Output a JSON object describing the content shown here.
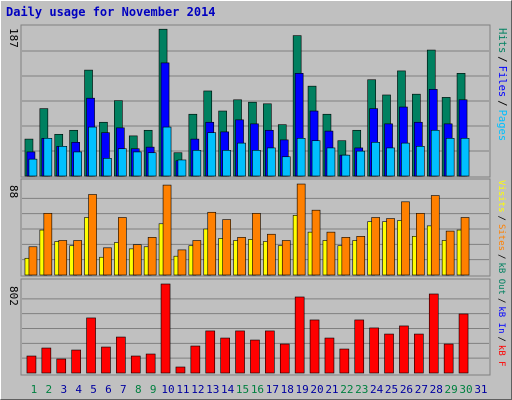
{
  "title": "Daily usage for November 2014",
  "legend_separator": "/",
  "chart_data": [
    {
      "type": "bar",
      "ylim": [
        0,
        187
      ],
      "yticks": [
        187
      ],
      "series": [
        {
          "name": "Hits",
          "color": "#008060",
          "values": [
            46,
            84,
            52,
            57,
            132,
            67,
            94,
            50,
            57,
            183,
            29,
            77,
            106,
            81,
            95,
            92,
            90,
            64,
            175,
            112,
            77,
            44,
            57,
            120,
            101,
            131,
            102,
            157,
            98,
            128,
            null
          ]
        },
        {
          "name": "Files",
          "color": "#0000ff",
          "values": [
            30,
            47,
            37,
            42,
            97,
            54,
            60,
            34,
            36,
            141,
            19,
            46,
            67,
            55,
            70,
            65,
            57,
            45,
            128,
            81,
            56,
            26,
            35,
            84,
            65,
            86,
            67,
            108,
            65,
            95,
            null
          ]
        },
        {
          "name": "Pages",
          "color": "#00c0ff",
          "values": [
            21,
            47,
            37,
            30,
            61,
            22,
            34,
            30,
            29,
            61,
            20,
            32,
            54,
            32,
            41,
            32,
            35,
            24,
            47,
            44,
            35,
            26,
            31,
            42,
            35,
            41,
            37,
            57,
            47,
            47,
            null
          ]
        }
      ]
    },
    {
      "type": "bar",
      "ylim": [
        0,
        88
      ],
      "yticks": [
        88
      ],
      "series": [
        {
          "name": "Visits",
          "color": "#ffff00",
          "values": [
            16,
            43,
            32,
            28,
            55,
            17,
            31,
            25,
            27,
            49,
            18,
            28,
            44,
            35,
            33,
            34,
            32,
            28,
            57,
            41,
            33,
            28,
            33,
            51,
            51,
            52,
            37,
            47,
            33,
            43,
            null
          ]
        },
        {
          "name": "Sites",
          "color": "#ff8000",
          "values": [
            27,
            59,
            33,
            33,
            77,
            26,
            55,
            29,
            36,
            86,
            24,
            33,
            60,
            53,
            36,
            59,
            39,
            33,
            87,
            62,
            41,
            36,
            37,
            55,
            54,
            70,
            59,
            76,
            42,
            55,
            null
          ]
        }
      ]
    },
    {
      "type": "bar",
      "ylim": [
        0,
        802
      ],
      "yticks": [
        802
      ],
      "categories": [
        "1",
        "2",
        "3",
        "4",
        "5",
        "6",
        "7",
        "8",
        "9",
        "10",
        "11",
        "12",
        "13",
        "14",
        "15",
        "16",
        "17",
        "18",
        "19",
        "20",
        "21",
        "22",
        "23",
        "24",
        "25",
        "26",
        "27",
        "28",
        "29",
        "30",
        "31"
      ],
      "category_colors": [
        "#008040",
        "#008040",
        "#0000a0",
        "#0000a0",
        "#0000a0",
        "#0000a0",
        "#0000a0",
        "#008040",
        "#008040",
        "#0000a0",
        "#0000a0",
        "#0000a0",
        "#0000a0",
        "#0000a0",
        "#008040",
        "#008040",
        "#0000a0",
        "#0000a0",
        "#0000a0",
        "#0000a0",
        "#0000a0",
        "#008040",
        "#008040",
        "#0000a0",
        "#0000a0",
        "#0000a0",
        "#0000a0",
        "#0000a0",
        "#008040",
        "#008040",
        "#0000a0"
      ],
      "series": [
        {
          "name": "kB Out",
          "color": "#008060",
          "values": [
            0,
            0,
            0,
            0,
            0,
            0,
            0,
            0,
            0,
            0,
            0,
            0,
            0,
            0,
            0,
            0,
            0,
            0,
            0,
            0,
            0,
            0,
            0,
            0,
            0,
            0,
            0,
            0,
            0,
            0,
            null
          ]
        },
        {
          "name": "kB In",
          "color": "#0000ff",
          "values": [
            0,
            0,
            0,
            0,
            0,
            0,
            0,
            0,
            0,
            0,
            0,
            0,
            0,
            0,
            0,
            0,
            0,
            0,
            0,
            0,
            0,
            0,
            0,
            0,
            0,
            0,
            0,
            0,
            0,
            0,
            null
          ]
        },
        {
          "name": "kB F",
          "color": "#ff0000",
          "values": [
            153,
            225,
            126,
            207,
            496,
            234,
            324,
            153,
            171,
            802,
            54,
            243,
            379,
            315,
            379,
            297,
            379,
            261,
            685,
            478,
            315,
            216,
            478,
            406,
            351,
            424,
            351,
            712,
            261,
            532,
            null
          ]
        }
      ]
    }
  ]
}
